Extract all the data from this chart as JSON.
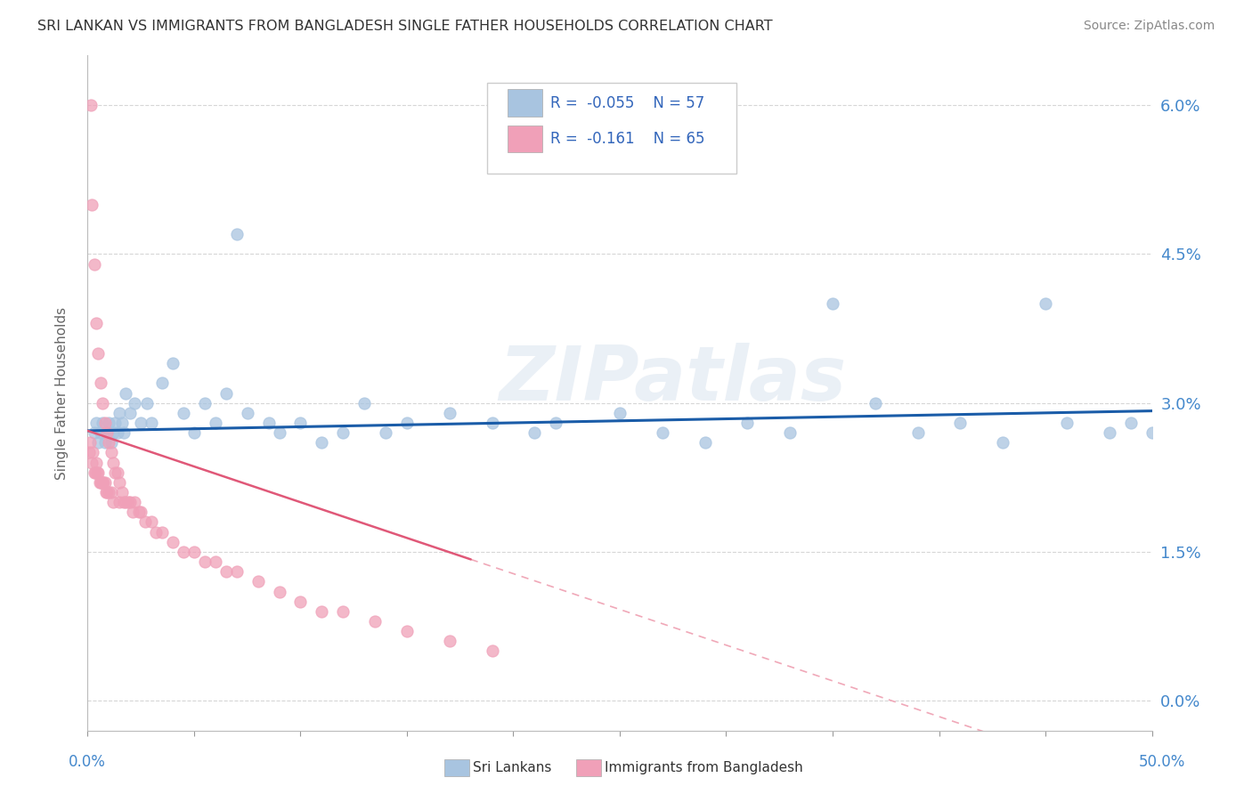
{
  "title": "SRI LANKAN VS IMMIGRANTS FROM BANGLADESH SINGLE FATHER HOUSEHOLDS CORRELATION CHART",
  "source": "Source: ZipAtlas.com",
  "ylabel": "Single Father Households",
  "watermark": "ZIPatlas",
  "blue_color": "#a8c4e0",
  "pink_color": "#f0a0b8",
  "blue_line_color": "#1a5ca8",
  "pink_line_color": "#e05878",
  "pink_dash_color": "#f0a8b8",
  "title_color": "#333333",
  "source_color": "#888888",
  "axis_label_color": "#4488cc",
  "legend_text_color": "#3366bb",
  "background_color": "#ffffff",
  "grid_color": "#cccccc",
  "xlim": [
    0,
    50
  ],
  "ylim": [
    -0.3,
    6.5
  ],
  "yticks": [
    0.0,
    1.5,
    3.0,
    4.5,
    6.0
  ],
  "blue_trend": {
    "intercept": 2.72,
    "slope": 0.004
  },
  "pink_solid_end": 18,
  "pink_trend": {
    "intercept": 2.72,
    "slope": -0.072
  }
}
